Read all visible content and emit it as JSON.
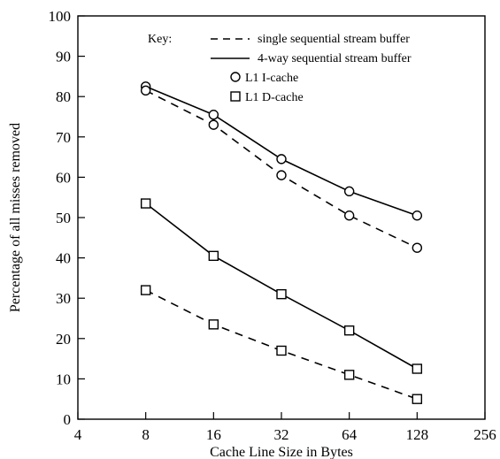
{
  "chart_data": {
    "type": "line",
    "x_scale": "log2",
    "x_ticks": [
      4,
      8,
      16,
      32,
      64,
      128,
      256
    ],
    "x_tick_labels": [
      "4",
      "8",
      "16",
      "32",
      "64",
      "128",
      "256"
    ],
    "y_ticks": [
      0,
      10,
      20,
      30,
      40,
      50,
      60,
      70,
      80,
      90,
      100
    ],
    "y_tick_labels": [
      "0",
      "10",
      "20",
      "30",
      "40",
      "50",
      "60",
      "70",
      "80",
      "90",
      "100"
    ],
    "xlim": [
      4,
      256
    ],
    "ylim": [
      0,
      100
    ],
    "xlabel": "Cache Line Size in Bytes",
    "ylabel": "Percentage of all misses removed",
    "grid": false,
    "legend": {
      "title": "Key:",
      "placement": "top-right",
      "line_entries": [
        {
          "style": "dashed",
          "label": "single sequential stream buffer"
        },
        {
          "style": "solid",
          "label": "4-way sequential stream buffer"
        }
      ],
      "marker_entries": [
        {
          "marker": "circle",
          "label": "L1 I-cache"
        },
        {
          "marker": "square",
          "label": "L1 D-cache"
        }
      ]
    },
    "series": [
      {
        "cache": "L1 I-cache",
        "buffer": "4-way",
        "style": "solid",
        "marker": "circle",
        "x": [
          8,
          16,
          32,
          64,
          128
        ],
        "values": [
          82.5,
          75.5,
          64.5,
          56.5,
          50.5
        ]
      },
      {
        "cache": "L1 I-cache",
        "buffer": "single",
        "style": "dashed",
        "marker": "circle",
        "x": [
          8,
          16,
          32,
          64,
          128
        ],
        "values": [
          81.5,
          73,
          60.5,
          50.5,
          42.5
        ]
      },
      {
        "cache": "L1 D-cache",
        "buffer": "4-way",
        "style": "solid",
        "marker": "square",
        "x": [
          8,
          16,
          32,
          64,
          128
        ],
        "values": [
          53.5,
          40.5,
          31,
          22,
          12.5
        ]
      },
      {
        "cache": "L1 D-cache",
        "buffer": "single",
        "style": "dashed",
        "marker": "square",
        "x": [
          8,
          16,
          32,
          64,
          128
        ],
        "values": [
          32,
          23.5,
          17,
          11,
          5
        ]
      }
    ]
  }
}
